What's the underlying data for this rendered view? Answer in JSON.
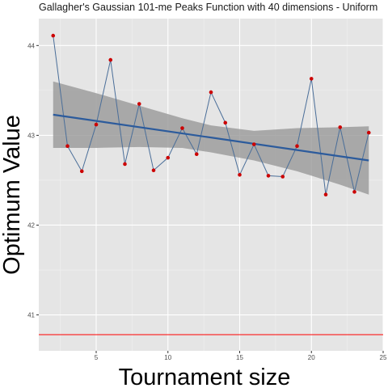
{
  "chart_data": {
    "type": "line",
    "title": "Gallagher's Gaussian 101-me Peaks Function with 40 dimensions -  Uniform",
    "xlabel": "Tournament size",
    "ylabel": "Optimum Value",
    "xlim": [
      1,
      25
    ],
    "ylim": [
      40.6,
      44.3
    ],
    "x_ticks": [
      5,
      10,
      15,
      20,
      25
    ],
    "y_ticks": [
      41,
      42,
      43,
      44
    ],
    "grid": true,
    "legend": "none",
    "series": [
      {
        "x": [
          2,
          3,
          4,
          5,
          6,
          7,
          8,
          9,
          10,
          11,
          12,
          13,
          14,
          15,
          16,
          17,
          18,
          19,
          20,
          21,
          22,
          23,
          24
        ],
        "y": [
          44.11,
          42.88,
          42.6,
          43.12,
          43.84,
          42.68,
          43.35,
          42.61,
          42.75,
          43.08,
          42.79,
          43.48,
          43.14,
          42.56,
          42.9,
          42.55,
          42.54,
          42.88,
          43.63,
          42.34,
          43.09,
          42.37,
          43.03
        ]
      }
    ],
    "trend": {
      "x": [
        2,
        24
      ],
      "y": [
        43.23,
        42.72
      ]
    },
    "confidence_band": {
      "x": [
        2,
        5,
        8,
        11,
        13,
        16,
        19,
        22,
        24
      ],
      "lower": [
        42.86,
        42.86,
        42.87,
        42.86,
        42.81,
        42.72,
        42.6,
        42.45,
        42.34
      ],
      "upper": [
        43.6,
        43.47,
        43.33,
        43.19,
        43.11,
        43.05,
        43.08,
        43.09,
        43.1
      ]
    },
    "reference_line": {
      "y": 40.78
    },
    "colors": {
      "panel": "#e5e5e5",
      "grid_major": "#ffffff",
      "grid_minor": "#f0f0f0",
      "line": "#4a6e99",
      "points": "#cc0000",
      "trend": "#2c5b9c",
      "band": "#999999",
      "reference": "#ff0000"
    }
  }
}
